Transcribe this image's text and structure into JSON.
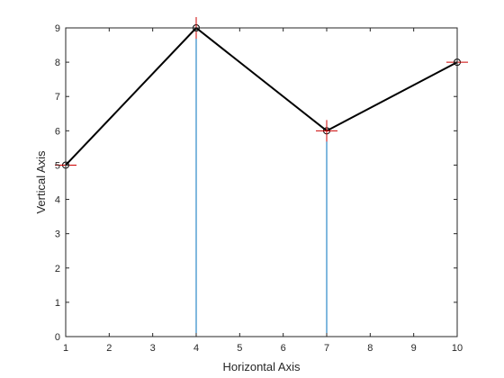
{
  "chart_data": {
    "type": "line",
    "title": "",
    "xlabel": "Horizontal Axis",
    "ylabel": "Vertical Axis",
    "xlim": [
      1,
      10
    ],
    "ylim": [
      0,
      9
    ],
    "xticks": [
      "1",
      "2",
      "3",
      "4",
      "5",
      "6",
      "7",
      "8",
      "9",
      "10"
    ],
    "yticks": [
      "0",
      "1",
      "2",
      "3",
      "4",
      "5",
      "6",
      "7",
      "8",
      "9"
    ],
    "grid": false,
    "x": [
      1,
      4,
      7,
      10
    ],
    "y": [
      5,
      9,
      6,
      8
    ],
    "series": [
      {
        "values": [
          5,
          9,
          6,
          8
        ],
        "line_color": "#000000",
        "stem_color": "#0072bd",
        "circle_marker_color": "#000000",
        "plus_marker_color": "#cc0000"
      }
    ]
  }
}
